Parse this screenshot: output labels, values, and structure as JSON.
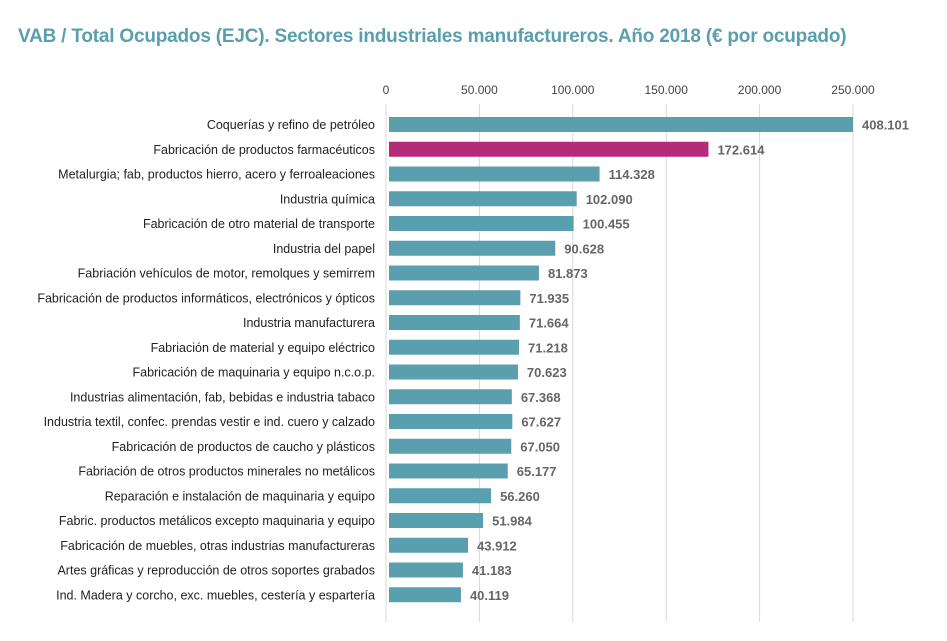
{
  "title": "VAB / Total Ocupados (EJC). Sectores industriales manufactureros. Año 2018 (€ por ocupado)",
  "colors": {
    "default_bar": "#5a9fae",
    "highlight_bar": "#b62b78",
    "title": "#5a9fae",
    "grid": "#d8d8d8"
  },
  "chart_data": {
    "type": "bar",
    "orientation": "horizontal",
    "title": "VAB / Total Ocupados (EJC). Sectores industriales manufactureros. Año 2018 (€ por ocupado)",
    "xlim": [
      0,
      250000
    ],
    "axis_position": "top",
    "grid": true,
    "x_ticks": [
      0,
      50000,
      100000,
      150000,
      200000,
      250000
    ],
    "x_tick_labels": [
      "0",
      "50.000",
      "100.000",
      "150.000",
      "200.000",
      "250.000"
    ],
    "highlight_index": 1,
    "categories": [
      "Coquerías y refino de petróleo",
      "Fabricación de productos farmacéuticos",
      "Metalurgia; fab, productos hierro, acero y ferroaleaciones",
      "Industria química",
      "Fabricación de otro material de transporte",
      "Industria del papel",
      "Fabriación vehículos de motor, remolques y semirrem",
      "Fabricación de productos informáticos, electrónicos y ópticos",
      "Industria manufacturera",
      "Fabriación de material y equipo eléctrico",
      "Fabricación de maquinaria y equipo n.c.o.p.",
      "Industrias alimentación, fab, bebidas e industria tabaco",
      "Industria textil, confec. prendas vestir e ind. cuero y calzado",
      "Fabricación de productos de caucho y plásticos",
      "Fabriación de otros productos minerales no metálicos",
      "Reparación e instalación de maquinaria y equipo",
      "Fabric. productos metálicos excepto maquinaria y equipo",
      "Fabricación de muebles, otras industrias manufactureras",
      "Artes gráficas y reproducción de otros soportes grabados",
      "Ind. Madera y corcho, exc. muebles, cestería y espartería"
    ],
    "values": [
      408101,
      172614,
      114328,
      102090,
      100455,
      90628,
      81873,
      71935,
      71664,
      71218,
      70623,
      67368,
      67627,
      67050,
      65177,
      56260,
      51984,
      43912,
      41183,
      40119
    ],
    "value_labels": [
      "408.101",
      "172.614",
      "114.328",
      "102.090",
      "100.455",
      "90.628",
      "81.873",
      "71.935",
      "71.664",
      "71.218",
      "70.623",
      "67.368",
      "67.627",
      "67.050",
      "65.177",
      "56.260",
      "51.984",
      "43.912",
      "41.183",
      "40.119"
    ]
  }
}
